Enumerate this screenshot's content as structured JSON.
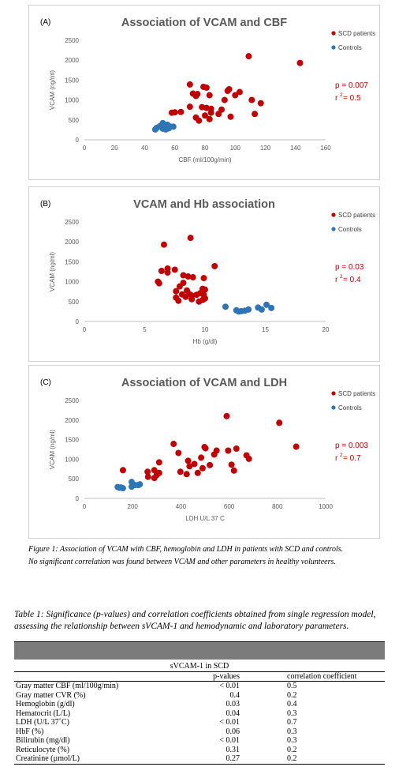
{
  "chart_data": [
    {
      "type": "scatter",
      "panel_label": "(A)",
      "title": "Association of VCAM and CBF",
      "xlabel": "CBF (ml/100g/min)",
      "ylabel": "VCAM (ng/ml)",
      "xlim": [
        0,
        160
      ],
      "ylim": [
        0,
        2500
      ],
      "xticks": [
        0,
        20,
        40,
        60,
        80,
        100,
        120,
        140,
        160
      ],
      "yticks": [
        0,
        500,
        1000,
        1500,
        2000,
        2500
      ],
      "grid": false,
      "legend": "top-right",
      "stat_p": "p = 0.007",
      "stat_r": "r",
      "stat_r_sup": "2",
      "stat_r_val": " = 0.5",
      "series": [
        {
          "name": "SCD patients",
          "color": "#c00000",
          "points": [
            [
              109,
              2100
            ],
            [
              143,
              1930
            ],
            [
              70,
              1390
            ],
            [
              79,
              1330
            ],
            [
              81,
              1310
            ],
            [
              96,
              1270
            ],
            [
              95,
              1230
            ],
            [
              72,
              1160
            ],
            [
              75,
              1150
            ],
            [
              74,
              1100
            ],
            [
              83,
              1120
            ],
            [
              100,
              1120
            ],
            [
              103,
              1200
            ],
            [
              111,
              1000
            ],
            [
              93,
              1000
            ],
            [
              117,
              920
            ],
            [
              78,
              820
            ],
            [
              81,
              800
            ],
            [
              84,
              780
            ],
            [
              91,
              760
            ],
            [
              70,
              830
            ],
            [
              64,
              700
            ],
            [
              60,
              690
            ],
            [
              58,
              680
            ],
            [
              84,
              680
            ],
            [
              89,
              650
            ],
            [
              80,
              610
            ],
            [
              97,
              580
            ],
            [
              113,
              650
            ],
            [
              74,
              560
            ],
            [
              83,
              520
            ],
            [
              76,
              480
            ]
          ]
        },
        {
          "name": "Controls",
          "color": "#2e75b6",
          "points": [
            [
              52,
              420
            ],
            [
              55,
              380
            ],
            [
              50,
              340
            ],
            [
              53,
              330
            ],
            [
              57,
              330
            ],
            [
              59,
              330
            ],
            [
              48,
              300
            ],
            [
              52,
              280
            ],
            [
              54,
              260
            ],
            [
              47,
              260
            ],
            [
              56,
              290
            ]
          ]
        }
      ]
    },
    {
      "type": "scatter",
      "panel_label": "(B)",
      "title": "VCAM and Hb association",
      "xlabel": "Hb (g/dl)",
      "ylabel": "VCAM (ng/ml)",
      "xlim": [
        0,
        20
      ],
      "ylim": [
        0,
        2500
      ],
      "xticks": [
        0,
        5,
        10,
        15,
        20
      ],
      "yticks": [
        0,
        500,
        1000,
        1500,
        2000,
        2500
      ],
      "grid": false,
      "legend": "top-right",
      "stat_p": "p = 0.03",
      "stat_r": "r",
      "stat_r_sup": "2",
      "stat_r_val": " = 0.4",
      "series": [
        {
          "name": "SCD patients",
          "color": "#c00000",
          "points": [
            [
              8.8,
              2100
            ],
            [
              6.6,
              1930
            ],
            [
              10.8,
              1390
            ],
            [
              6.9,
              1330
            ],
            [
              7.5,
              1300
            ],
            [
              6.4,
              1270
            ],
            [
              6.9,
              1230
            ],
            [
              8.2,
              1160
            ],
            [
              8.6,
              1130
            ],
            [
              9.0,
              1110
            ],
            [
              9.9,
              1090
            ],
            [
              6.1,
              1000
            ],
            [
              6.2,
              960
            ],
            [
              8.2,
              970
            ],
            [
              7.9,
              880
            ],
            [
              9.8,
              820
            ],
            [
              10.0,
              800
            ],
            [
              8.5,
              780
            ],
            [
              7.6,
              760
            ],
            [
              9.6,
              710
            ],
            [
              8.7,
              690
            ],
            [
              8.1,
              680
            ],
            [
              9.3,
              670
            ],
            [
              9.9,
              670
            ],
            [
              8.9,
              650
            ],
            [
              8.4,
              620
            ],
            [
              7.6,
              600
            ],
            [
              10.0,
              580
            ],
            [
              8.9,
              560
            ],
            [
              9.8,
              540
            ],
            [
              7.8,
              520
            ],
            [
              9.5,
              500
            ]
          ]
        },
        {
          "name": "Controls",
          "color": "#2e75b6",
          "points": [
            [
              11.7,
              370
            ],
            [
              15.1,
              420
            ],
            [
              15.5,
              340
            ],
            [
              14.4,
              350
            ],
            [
              14.7,
              300
            ],
            [
              13.6,
              300
            ],
            [
              13.3,
              270
            ],
            [
              12.6,
              280
            ],
            [
              13.0,
              260
            ],
            [
              12.8,
              250
            ]
          ]
        }
      ]
    },
    {
      "type": "scatter",
      "panel_label": "(C)",
      "title": "Association of VCAM and LDH",
      "xlabel": "LDH U/L 37 C",
      "ylabel": "VCAM (ng/ml)",
      "xlim": [
        0,
        1000
      ],
      "ylim": [
        0,
        2500
      ],
      "xticks": [
        0,
        200,
        400,
        600,
        800,
        1000
      ],
      "yticks": [
        0,
        500,
        1000,
        1500,
        2000,
        2500
      ],
      "grid": false,
      "legend": "top-right",
      "stat_p": "p = 0.003",
      "stat_r": "r",
      "stat_r_sup": "2",
      "stat_r_val": " = 0.7",
      "series": [
        {
          "name": "SCD patients",
          "color": "#c00000",
          "points": [
            [
              590,
              2100
            ],
            [
              808,
              1930
            ],
            [
              370,
              1390
            ],
            [
              878,
              1320
            ],
            [
              498,
              1310
            ],
            [
              502,
              1280
            ],
            [
              630,
              1270
            ],
            [
              596,
              1220
            ],
            [
              548,
              1220
            ],
            [
              390,
              1160
            ],
            [
              672,
              1100
            ],
            [
              538,
              1120
            ],
            [
              682,
              1010
            ],
            [
              484,
              1040
            ],
            [
              430,
              960
            ],
            [
              310,
              920
            ],
            [
              456,
              880
            ],
            [
              610,
              860
            ],
            [
              520,
              850
            ],
            [
              436,
              820
            ],
            [
              490,
              770
            ],
            [
              290,
              720
            ],
            [
              160,
              720
            ],
            [
              262,
              680
            ],
            [
              398,
              680
            ],
            [
              470,
              650
            ],
            [
              310,
              650
            ],
            [
              300,
              600
            ],
            [
              424,
              620
            ],
            [
              620,
              710
            ],
            [
              264,
              550
            ],
            [
              290,
              520
            ]
          ]
        },
        {
          "name": "Controls",
          "color": "#2e75b6",
          "points": [
            [
              196,
              420
            ],
            [
              230,
              360
            ],
            [
              210,
              340
            ],
            [
              224,
              340
            ],
            [
              196,
              300
            ],
            [
              138,
              290
            ],
            [
              152,
              280
            ],
            [
              146,
              270
            ],
            [
              160,
              260
            ]
          ]
        }
      ]
    }
  ],
  "figure_caption_line1": "Figure 1: Association of VCAM with CBF, hemoglobin and LDH in patients with SCD and controls.",
  "figure_caption_line2": "No significant correlation was found between VCAM and other parameters in healthy volunteers.",
  "table_title": "Table 1: Significance (p-values) and correlation coefficients obtained from single regression model, assessing the relationship between sVCAM-1 and hemodynamic and laboratory parameters.",
  "table": {
    "group_header": "sVCAM-1 in SCD",
    "col_pvalue": "p-values",
    "col_corr": "correlation coefficient",
    "rows": [
      {
        "param": "Gray matter CBF (ml/100g/min)",
        "p": "< 0.01",
        "r": "0.5"
      },
      {
        "param": "Gray matter CVR (%)",
        "p": "0.4",
        "r": "0.2"
      },
      {
        "param": "Hemoglobin (g/dl)",
        "p": "0.03",
        "r": "0.4"
      },
      {
        "param": "Hematocrit (L/L)",
        "p": "0.04",
        "r": "0.3"
      },
      {
        "param": "LDH (U/L 37˚C)",
        "p": "< 0.01",
        "r": "0.7"
      },
      {
        "param": "HbF (%)",
        "p": "0.06",
        "r": "0.3"
      },
      {
        "param": "Bilirubin (mg/dl)",
        "p": "< 0.01",
        "r": "0.3"
      },
      {
        "param": "Reticulocyte (%)",
        "p": "0.31",
        "r": "0.2"
      },
      {
        "param": "Creatinine (µmol/L)",
        "p": "0.27",
        "r": "0.2"
      }
    ]
  }
}
